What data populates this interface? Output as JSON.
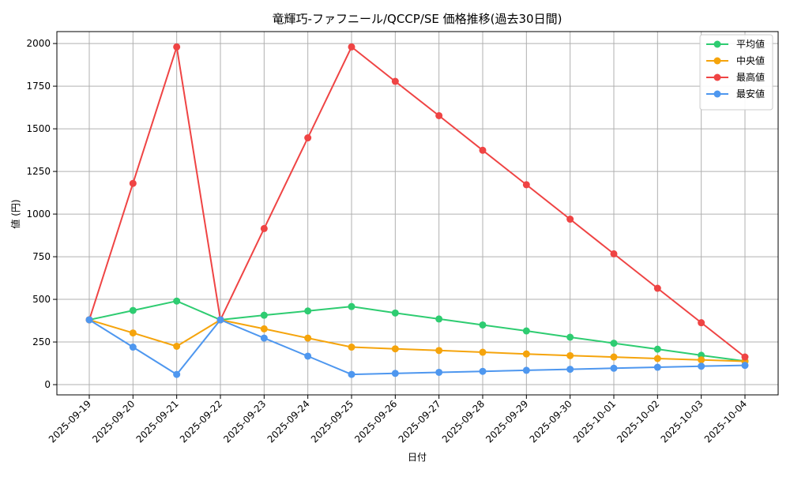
{
  "chart_data": {
    "type": "line",
    "title": "竜輝巧-ファフニール/QCCP/SE 価格推移(過去30日間)",
    "xlabel": "日付",
    "ylabel": "値 (円)",
    "categories": [
      "2025-09-19",
      "2025-09-20",
      "2025-09-21",
      "2025-09-22",
      "2025-09-23",
      "2025-09-24",
      "2025-09-25",
      "2025-09-26",
      "2025-09-27",
      "2025-09-28",
      "2025-09-29",
      "2025-09-30",
      "2025-10-01",
      "2025-10-02",
      "2025-10-03",
      "2025-10-04"
    ],
    "ylim": [
      -60,
      2070
    ],
    "yticks": [
      0,
      250,
      500,
      750,
      1000,
      1250,
      1500,
      1750,
      2000
    ],
    "ytick_labels": [
      "0",
      "250",
      "500",
      "750",
      "1000",
      "1250",
      "1500",
      "1750",
      "2000"
    ],
    "grid": true,
    "legend_position": "top-right",
    "series": [
      {
        "name": "平均値",
        "color": "#2ecc71",
        "values": [
          380,
          435,
          490,
          380,
          407,
          432,
          458,
          420,
          385,
          350,
          315,
          278,
          243,
          208,
          172,
          138
        ]
      },
      {
        "name": "中央値",
        "color": "#f5a40c",
        "values": [
          380,
          303,
          225,
          380,
          327,
          273,
          220,
          210,
          200,
          190,
          180,
          170,
          162,
          153,
          145,
          137
        ]
      },
      {
        "name": "最高値",
        "color": "#ef4444",
        "values": [
          380,
          1180,
          1980,
          380,
          915,
          1447,
          1980,
          1778,
          1577,
          1374,
          1172,
          970,
          767,
          565,
          363,
          162
        ]
      },
      {
        "name": "最安値",
        "color": "#4e97ef",
        "values": [
          380,
          220,
          60,
          380,
          273,
          167,
          60,
          66,
          72,
          78,
          84,
          90,
          96,
          102,
          108,
          113
        ]
      }
    ]
  }
}
